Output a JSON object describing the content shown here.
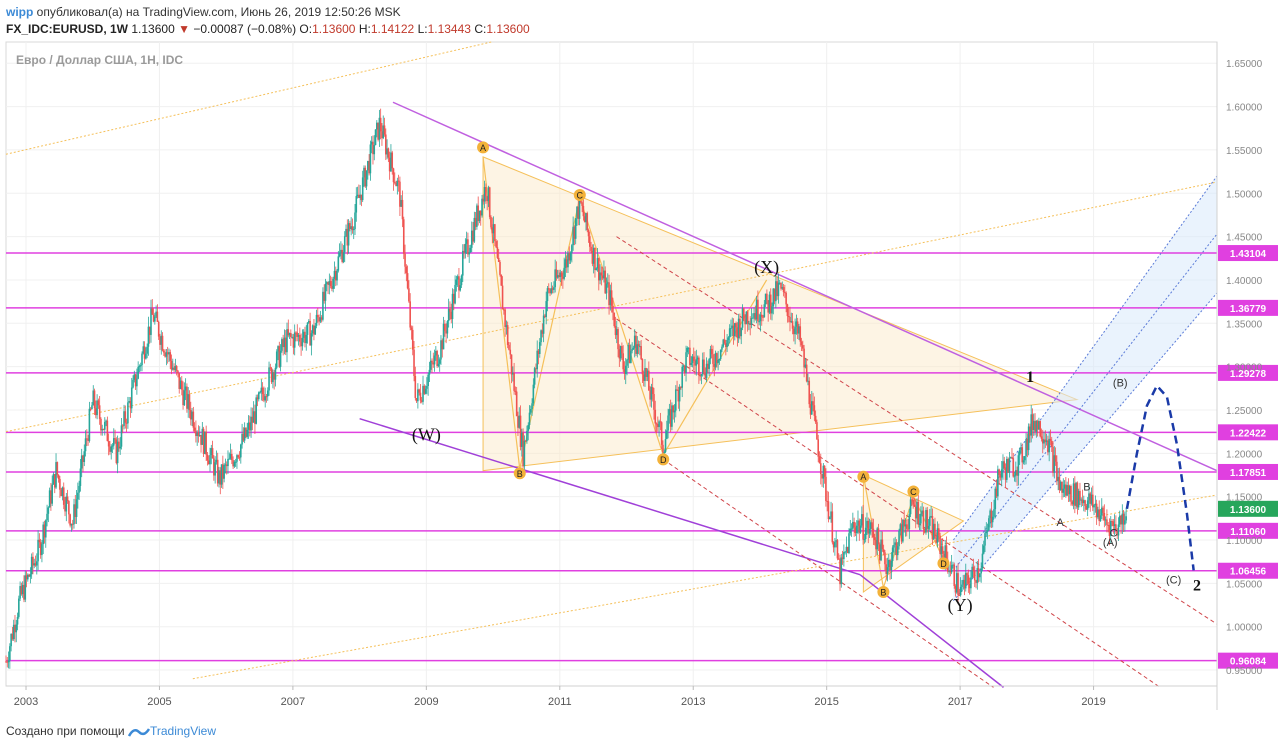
{
  "header": {
    "user": "wipp",
    "published": "опубликовал(а) на TradingView.com, Июнь 26, 2019 12:50:26 MSK",
    "symbol": "FX_IDC:EURUSD, 1W",
    "last": "1.13600",
    "change": "−0.00087 (−0.08%)",
    "o_label": "O:",
    "o": "1.13600",
    "h_label": "H:",
    "h": "1.14122",
    "l_label": "L:",
    "l": "1.13443",
    "c_label": "C:",
    "c": "1.13600"
  },
  "footer": {
    "created": "Создано при помощи",
    "brand": "TradingView"
  },
  "colors": {
    "up": "#26a69a",
    "down": "#ef5350",
    "level": "#e040e0",
    "triangle": "#f5c05a",
    "dashed_red": "#d0454a",
    "channel_blue": "#5a7bd8",
    "wave_blue": "#1a3aa8"
  },
  "chart_data": {
    "type": "candlestick",
    "title": "Евро / Доллар США, 1Н, IDC",
    "x_ticks": [
      "2003",
      "2005",
      "2007",
      "2009",
      "2011",
      "2013",
      "2015",
      "2017",
      "2019"
    ],
    "x_tick_years": [
      2003,
      2005,
      2007,
      2009,
      2011,
      2013,
      2015,
      2017,
      2019
    ],
    "xlim": [
      2002.7,
      2020.85
    ],
    "ylim": [
      0.9316,
      1.6745
    ],
    "y_ticks": [
      "1.65000",
      "1.60000",
      "1.55000",
      "1.50000",
      "1.45000",
      "1.40000",
      "1.35000",
      "1.30000",
      "1.25000",
      "1.20000",
      "1.15000",
      "1.10000",
      "1.05000",
      "1.00000",
      "0.95000"
    ],
    "levels": [
      {
        "value": 1.43104,
        "label": "1.43104"
      },
      {
        "value": 1.36779,
        "label": "1.36779"
      },
      {
        "value": 1.29278,
        "label": "1.29278"
      },
      {
        "value": 1.22422,
        "label": "1.22422"
      },
      {
        "value": 1.17851,
        "label": "1.17851"
      },
      {
        "value": 1.1106,
        "label": "1.11060"
      },
      {
        "value": 1.06456,
        "label": "1.06456"
      },
      {
        "value": 0.96084,
        "label": "0.96084"
      }
    ],
    "last_price": {
      "value": 1.136,
      "label": "1.13600"
    },
    "price_path": [
      [
        2002.7,
        0.96
      ],
      [
        2002.9,
        1.03
      ],
      [
        2003.2,
        1.09
      ],
      [
        2003.45,
        1.18
      ],
      [
        2003.7,
        1.12
      ],
      [
        2004.0,
        1.26
      ],
      [
        2004.35,
        1.2
      ],
      [
        2004.9,
        1.36
      ],
      [
        2005.3,
        1.28
      ],
      [
        2005.9,
        1.17
      ],
      [
        2006.3,
        1.22
      ],
      [
        2006.6,
        1.28
      ],
      [
        2006.9,
        1.33
      ],
      [
        2007.3,
        1.34
      ],
      [
        2007.9,
        1.47
      ],
      [
        2008.3,
        1.58
      ],
      [
        2008.6,
        1.5
      ],
      [
        2008.85,
        1.26
      ],
      [
        2009.2,
        1.32
      ],
      [
        2009.55,
        1.42
      ],
      [
        2009.9,
        1.51
      ],
      [
        2010.15,
        1.37
      ],
      [
        2010.45,
        1.2
      ],
      [
        2010.8,
        1.38
      ],
      [
        2011.1,
        1.42
      ],
      [
        2011.3,
        1.49
      ],
      [
        2011.5,
        1.43
      ],
      [
        2011.75,
        1.38
      ],
      [
        2011.95,
        1.3
      ],
      [
        2012.15,
        1.33
      ],
      [
        2012.55,
        1.21
      ],
      [
        2012.9,
        1.31
      ],
      [
        2013.2,
        1.3
      ],
      [
        2013.5,
        1.33
      ],
      [
        2013.8,
        1.36
      ],
      [
        2014.1,
        1.37
      ],
      [
        2014.3,
        1.39
      ],
      [
        2014.6,
        1.33
      ],
      [
        2014.8,
        1.24
      ],
      [
        2015.0,
        1.15
      ],
      [
        2015.2,
        1.06
      ],
      [
        2015.4,
        1.12
      ],
      [
        2015.7,
        1.11
      ],
      [
        2015.9,
        1.07
      ],
      [
        2016.3,
        1.14
      ],
      [
        2016.6,
        1.11
      ],
      [
        2016.9,
        1.06
      ],
      [
        2017.0,
        1.04
      ],
      [
        2017.3,
        1.07
      ],
      [
        2017.6,
        1.18
      ],
      [
        2017.9,
        1.19
      ],
      [
        2018.1,
        1.24
      ],
      [
        2018.3,
        1.22
      ],
      [
        2018.5,
        1.16
      ],
      [
        2018.8,
        1.15
      ],
      [
        2019.0,
        1.14
      ],
      [
        2019.2,
        1.12
      ],
      [
        2019.35,
        1.115
      ],
      [
        2019.5,
        1.136
      ]
    ],
    "annotations": [
      {
        "text": "(W)",
        "x": 2009.0,
        "y": 1.215
      },
      {
        "text": "(X)",
        "x": 2014.1,
        "y": 1.408
      },
      {
        "text": "(Y)",
        "x": 2017.0,
        "y": 1.018
      },
      {
        "text": "1",
        "x": 2018.05,
        "y": 1.282
      },
      {
        "text": "2",
        "x": 2020.55,
        "y": 1.042
      },
      {
        "text": "(B)",
        "x": 2019.4,
        "y": 1.277
      },
      {
        "text": "(A)",
        "x": 2019.25,
        "y": 1.093
      },
      {
        "text": "(C)",
        "x": 2020.2,
        "y": 1.05
      },
      {
        "text": "A",
        "x": 2018.5,
        "y": 1.116
      },
      {
        "text": "B",
        "x": 2018.9,
        "y": 1.157
      },
      {
        "text": "C",
        "x": 2019.3,
        "y": 1.104
      }
    ],
    "triangle_points": [
      {
        "text": "A",
        "x": 2009.85,
        "y": 1.553
      },
      {
        "text": "B",
        "x": 2010.4,
        "y": 1.177
      },
      {
        "text": "C",
        "x": 2011.3,
        "y": 1.498
      },
      {
        "text": "D",
        "x": 2012.55,
        "y": 1.193
      },
      {
        "text": "A",
        "x": 2015.55,
        "y": 1.173
      },
      {
        "text": "B",
        "x": 2015.85,
        "y": 1.04
      },
      {
        "text": "C",
        "x": 2016.3,
        "y": 1.156
      },
      {
        "text": "D",
        "x": 2016.75,
        "y": 1.073
      }
    ]
  }
}
